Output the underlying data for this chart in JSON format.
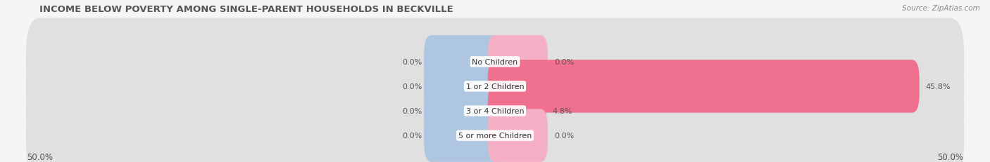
{
  "title": "INCOME BELOW POVERTY AMONG SINGLE-PARENT HOUSEHOLDS IN BECKVILLE",
  "source": "Source: ZipAtlas.com",
  "categories": [
    "No Children",
    "1 or 2 Children",
    "3 or 4 Children",
    "5 or more Children"
  ],
  "single_father": [
    0.0,
    0.0,
    0.0,
    0.0
  ],
  "single_mother": [
    0.0,
    45.8,
    4.8,
    0.0
  ],
  "max_val": 50.0,
  "father_color": "#aec6e0",
  "mother_color": "#f07090",
  "mother_color_light": "#f5b0c5",
  "bar_bg_color": "#e0e0e0",
  "bar_bg_color2": "#ebebeb",
  "title_color": "#555555",
  "label_color": "#555555",
  "category_color": "#333333",
  "background_color": "#f5f5f5",
  "title_fontsize": 9.5,
  "label_fontsize": 8,
  "category_fontsize": 8,
  "axis_label_fontsize": 8.5,
  "legend_fontsize": 8.5,
  "source_fontsize": 7.5
}
